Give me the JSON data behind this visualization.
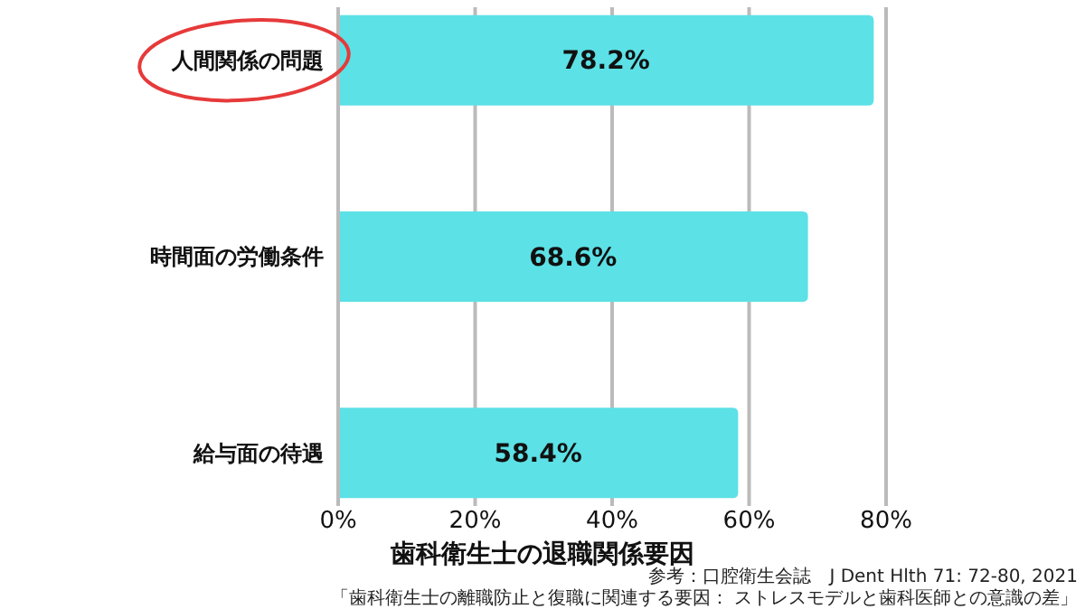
{
  "chart_data": {
    "type": "bar",
    "orientation": "horizontal",
    "xlabel": "歯科衛生士の退職関係要因",
    "categories": [
      "人間関係の問題",
      "時間面の労働条件",
      "給与面の待遇"
    ],
    "values": [
      78.2,
      68.6,
      58.4
    ],
    "value_labels": [
      "78.2%",
      "68.6%",
      "58.4%"
    ],
    "color": "#5ce1e6",
    "xlim": [
      0,
      80
    ],
    "xticks": [
      {
        "value": 0,
        "label": "0%"
      },
      {
        "value": 20,
        "label": "20%"
      },
      {
        "value": 40,
        "label": "40%"
      },
      {
        "value": 60,
        "label": "60%"
      },
      {
        "value": 80,
        "label": "80%"
      }
    ],
    "grid": "x",
    "annotations": [
      "参考：口腔衛生会誌　J Dent Hlth 71: 72-80, 2021",
      "「歯科衛生士の離職防止と復職に関連する要因： ストレスモデルと歯科医師との意識の差」"
    ]
  }
}
